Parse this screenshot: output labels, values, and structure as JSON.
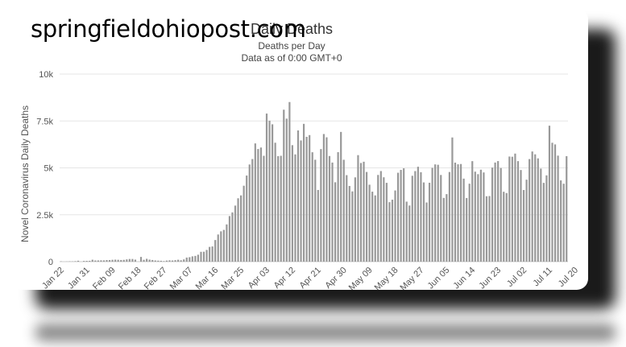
{
  "watermark": "springfieldohiopost.com",
  "chart_data": {
    "type": "bar",
    "title": "Daily Deaths",
    "subtitle": "Deaths per Day",
    "subtitle2": "Data as of 0:00 GMT+0",
    "ylabel": "Novel Coronavirus Daily Deaths",
    "xlabel": "",
    "ylim": [
      0,
      10000
    ],
    "y_ticks": [
      0,
      2500,
      5000,
      7500,
      10000
    ],
    "y_tick_labels": [
      "0",
      "2.5k",
      "5k",
      "7.5k",
      "10k"
    ],
    "grid": true,
    "bar_color": "#999999",
    "x_tick_labels": [
      "Jan 22",
      "Jan 31",
      "Feb 09",
      "Feb 18",
      "Feb 27",
      "Mar 07",
      "Mar 16",
      "Mar 25",
      "Apr 03",
      "Apr 12",
      "Apr 21",
      "Apr 30",
      "May 09",
      "May 18",
      "May 27",
      "Jun 05",
      "Jun 14",
      "Jun 23",
      "Jul 02",
      "Jul 11",
      "Jul 20"
    ],
    "dates_start": "Jan 22",
    "values": [
      17,
      0,
      8,
      16,
      14,
      26,
      49,
      2,
      38,
      42,
      46,
      103,
      64,
      66,
      72,
      70,
      85,
      87,
      100,
      107,
      100,
      89,
      97,
      121,
      143,
      143,
      108,
      5,
      252,
      100,
      152,
      109,
      89,
      65,
      54,
      48,
      31,
      58,
      72,
      63,
      80,
      102,
      75,
      120,
      218,
      238,
      283,
      307,
      371,
      525,
      529,
      625,
      787,
      811,
      1153,
      1448,
      1616,
      1694,
      1986,
      2431,
      2626,
      2989,
      3378,
      3532,
      4048,
      4590,
      5180,
      5470,
      6303,
      6006,
      6085,
      5643,
      7894,
      7515,
      7322,
      6340,
      5626,
      5644,
      8100,
      7624,
      8509,
      6210,
      5718,
      6996,
      6462,
      7346,
      6654,
      6747,
      5832,
      5434,
      3822,
      6001,
      6804,
      6629,
      5632,
      5283,
      4232,
      5837,
      6916,
      5431,
      4612,
      4035,
      3746,
      4493,
      5678,
      5260,
      5327,
      4781,
      4102,
      3731,
      3532,
      4622,
      4829,
      4498,
      4202,
      3171,
      3304,
      3796,
      4740,
      4892,
      4976,
      3199,
      2993,
      4578,
      4828,
      5060,
      4768,
      4224,
      3155,
      4206,
      5000,
      5185,
      5165,
      4621,
      3398,
      3600,
      4779,
      6620,
      5278,
      5190,
      5205,
      4426,
      3393,
      4156,
      5358,
      4798,
      4664,
      4902,
      4756,
      3487,
      3498,
      5015,
      5284,
      5362,
      4991,
      3726,
      3658,
      5604,
      5593,
      5761,
      5359,
      4885,
      3818,
      4371,
      5468,
      5873,
      5722,
      5505,
      4960,
      4200,
      4600,
      7248,
      6339,
      6250,
      5652,
      4332,
      4155,
      5624
    ]
  }
}
